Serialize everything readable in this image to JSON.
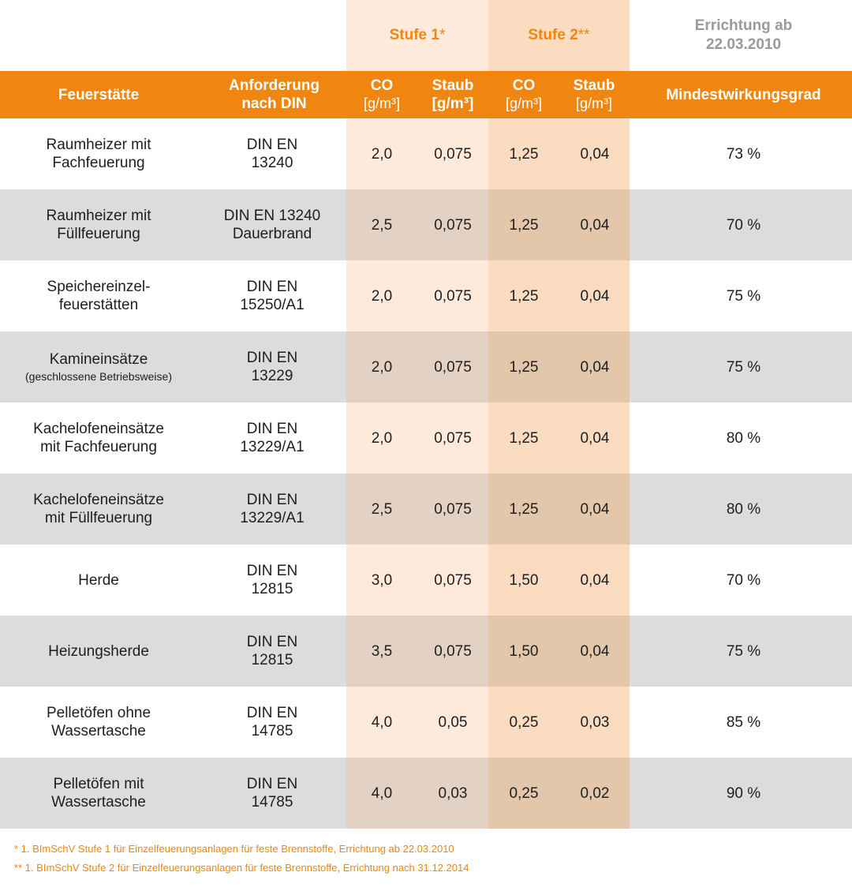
{
  "super_header": {
    "stufe1_label": "Stufe 1",
    "stufe1_mark": "*",
    "stufe2_label": "Stufe 2",
    "stufe2_mark": "**",
    "errichtung_line1": "Errichtung ab",
    "errichtung_line2": "22.03.2010"
  },
  "header": {
    "feuerstaette": "Feuerstätte",
    "anforderung_line1": "Anforderung",
    "anforderung_line2": "nach DIN",
    "co": "CO",
    "co_unit": "[g/m³]",
    "staub": "Staub",
    "staub_unit": "[g/m³]",
    "mindestwirkungsgrad": "Mindestwirkungsgrad"
  },
  "rows": [
    {
      "name": [
        "Raumheizer mit",
        "Fachfeuerung"
      ],
      "name_note": "",
      "din": [
        "DIN EN",
        "13240"
      ],
      "s1_co": "2,0",
      "s1_staub": "0,075",
      "s2_co": "1,25",
      "s2_staub": "0,04",
      "eff": "73 %"
    },
    {
      "name": [
        "Raumheizer mit",
        "Füllfeuerung"
      ],
      "name_note": "",
      "din": [
        "DIN EN 13240",
        "Dauerbrand"
      ],
      "s1_co": "2,5",
      "s1_staub": "0,075",
      "s2_co": "1,25",
      "s2_staub": "0,04",
      "eff": "70 %"
    },
    {
      "name": [
        "Speichereinzel-",
        "feuerstätten"
      ],
      "name_note": "",
      "din": [
        "DIN EN",
        "15250/A1"
      ],
      "s1_co": "2,0",
      "s1_staub": "0,075",
      "s2_co": "1,25",
      "s2_staub": "0,04",
      "eff": "75 %"
    },
    {
      "name": [
        "Kamineinsätze",
        ""
      ],
      "name_note": "(geschlossene Betriebsweise)",
      "din": [
        "DIN EN",
        "13229"
      ],
      "s1_co": "2,0",
      "s1_staub": "0,075",
      "s2_co": "1,25",
      "s2_staub": "0,04",
      "eff": "75 %"
    },
    {
      "name": [
        "Kachelofeneinsätze",
        "mit Fachfeuerung"
      ],
      "name_note": "",
      "din": [
        "DIN EN",
        "13229/A1"
      ],
      "s1_co": "2,0",
      "s1_staub": "0,075",
      "s2_co": "1,25",
      "s2_staub": "0,04",
      "eff": "80 %"
    },
    {
      "name": [
        "Kachelofeneinsätze",
        "mit Füllfeuerung"
      ],
      "name_note": "",
      "din": [
        "DIN EN",
        "13229/A1"
      ],
      "s1_co": "2,5",
      "s1_staub": "0,075",
      "s2_co": "1,25",
      "s2_staub": "0,04",
      "eff": "80 %"
    },
    {
      "name": [
        "Herde",
        ""
      ],
      "name_note": "",
      "din": [
        "DIN EN",
        "12815"
      ],
      "s1_co": "3,0",
      "s1_staub": "0,075",
      "s2_co": "1,50",
      "s2_staub": "0,04",
      "eff": "70 %"
    },
    {
      "name": [
        "Heizungsherde",
        ""
      ],
      "name_note": "",
      "din": [
        "DIN EN",
        "12815"
      ],
      "s1_co": "3,5",
      "s1_staub": "0,075",
      "s2_co": "1,50",
      "s2_staub": "0,04",
      "eff": "75 %"
    },
    {
      "name": [
        "Pelletöfen ohne",
        "Wassertasche"
      ],
      "name_note": "",
      "din": [
        "DIN EN",
        "14785"
      ],
      "s1_co": "4,0",
      "s1_staub": "0,05",
      "s2_co": "0,25",
      "s2_staub": "0,03",
      "eff": "85 %"
    },
    {
      "name": [
        "Pelletöfen mit",
        "Wassertasche"
      ],
      "name_note": "",
      "din": [
        "DIN EN",
        "14785"
      ],
      "s1_co": "4,0",
      "s1_staub": "0,03",
      "s2_co": "0,25",
      "s2_staub": "0,02",
      "eff": "90 %"
    }
  ],
  "footnotes": [
    "* 1. BImSchV Stufe 1 für Einzelfeuerungsanlagen für feste Brennstoffe, Errichtung ab 22.03.2010",
    "** 1. BImSchV Stufe 2 für Einzelfeuerungsanlagen für feste Brennstoffe, Errichtung nach 31.12.2014"
  ],
  "colors": {
    "accent_orange": "#f0860f",
    "stufe1_tint": "#fdeadb",
    "stufe2_tint": "#fbdcc0",
    "row_grey": "#dcdcdc",
    "muted_text": "#9a9a9a"
  }
}
